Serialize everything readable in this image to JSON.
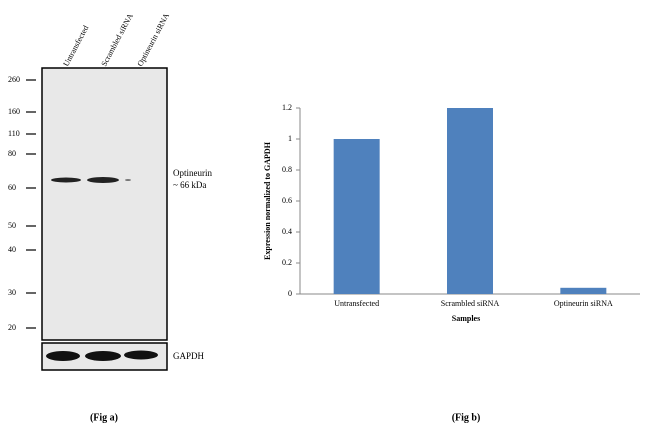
{
  "blot": {
    "lanes": [
      "Untransfected",
      "Scrambled siRNA",
      "Optineurin siRNA"
    ],
    "markers": [
      260,
      160,
      110,
      80,
      60,
      50,
      40,
      30,
      20
    ],
    "band_label": "Optineurin",
    "band_size": "~ 66 kDa",
    "control_label": "GAPDH",
    "caption": "(Fig a)"
  },
  "chart_data": {
    "type": "bar",
    "caption": "(Fig b)",
    "y_label": "Expression normalized to GAPDH",
    "x_label": "Samples",
    "categories": [
      "Untransfected",
      "Scrambled siRNA",
      "Optineurin siRNA"
    ],
    "values": [
      1.0,
      1.2,
      0.04
    ],
    "color": "#4f81bd",
    "ylim": [
      0,
      1.2
    ],
    "yticks": [
      0,
      0.2,
      0.4,
      0.6,
      0.8,
      1,
      1.2
    ]
  }
}
